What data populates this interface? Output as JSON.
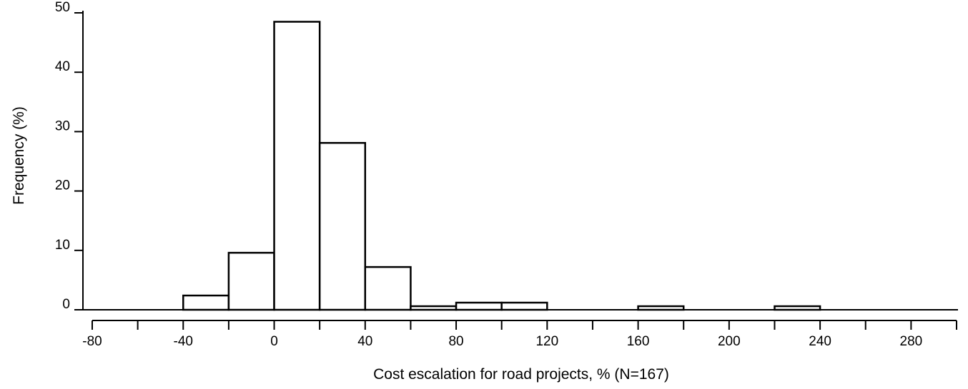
{
  "chart_data": {
    "type": "bar",
    "title": "",
    "xlabel": "Cost escalation for road projects, % (N=167)",
    "ylabel": "Frequency (%)",
    "xlim": [
      -80,
      300
    ],
    "ylim": [
      0,
      50
    ],
    "x_ticks": [
      -80,
      -60,
      -40,
      -20,
      0,
      20,
      40,
      60,
      80,
      100,
      120,
      140,
      160,
      180,
      200,
      220,
      240,
      260,
      280,
      300
    ],
    "x_tick_labels": [
      "-80",
      "-40",
      "0",
      "40",
      "80",
      "120",
      "160",
      "200",
      "240",
      "280"
    ],
    "y_ticks": [
      0,
      10,
      20,
      30,
      40,
      50
    ],
    "y_tick_labels": [
      "0",
      "10",
      "20",
      "30",
      "40",
      "50"
    ],
    "bins": [
      {
        "x0": -40,
        "x1": -20,
        "value": 2.4
      },
      {
        "x0": -20,
        "x1": 0,
        "value": 9.6
      },
      {
        "x0": 0,
        "x1": 20,
        "value": 48.5
      },
      {
        "x0": 20,
        "x1": 40,
        "value": 28.1
      },
      {
        "x0": 40,
        "x1": 60,
        "value": 7.2
      },
      {
        "x0": 60,
        "x1": 80,
        "value": 0.6
      },
      {
        "x0": 80,
        "x1": 100,
        "value": 1.2
      },
      {
        "x0": 100,
        "x1": 120,
        "value": 1.2
      },
      {
        "x0": 160,
        "x1": 180,
        "value": 0.6
      },
      {
        "x0": 220,
        "x1": 240,
        "value": 0.6
      }
    ],
    "grid": false,
    "legend": "none",
    "colors": {
      "bar_fill": "#ffffff",
      "bar_stroke": "#000000"
    }
  }
}
